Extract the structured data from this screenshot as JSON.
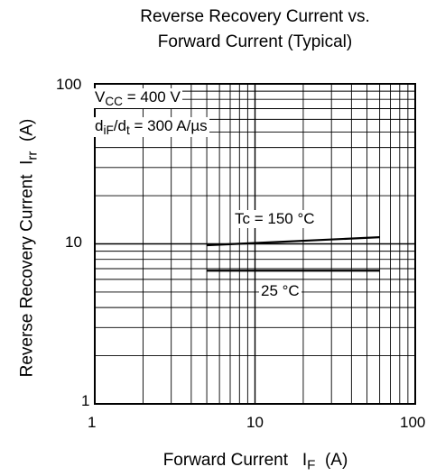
{
  "chart_data": {
    "type": "line",
    "title_line1": "Reverse Recovery Current vs.",
    "title_line2": "Forward Current  (Typical)",
    "ylabel": {
      "main": "Reverse Recovery Current",
      "symbol": "I",
      "subscript": "rr",
      "unit": "(A)"
    },
    "xlabel": {
      "main": "Forward  Current",
      "symbol": "I",
      "subscript": "F",
      "unit": "(A)"
    },
    "xscale": "log",
    "yscale": "log",
    "xlim": [
      1,
      100
    ],
    "ylim": [
      1,
      100
    ],
    "grid": true,
    "xticks": [
      "1",
      "10",
      "100"
    ],
    "yticks": [
      "1",
      "10",
      "100"
    ],
    "conditions": {
      "vcc": {
        "sym": "V",
        "sub": "CC",
        "rest": "= 400 V"
      },
      "didt": {
        "pre": "d",
        "sub1": "iF",
        "mid": "/d",
        "sub2": "t",
        "rest": "= 300 A/µs"
      }
    },
    "series": [
      {
        "name": "Tc = 150 °C",
        "x": [
          5,
          60
        ],
        "y": [
          9.8,
          11.0
        ]
      },
      {
        "name": "25 °C",
        "x": [
          5,
          60
        ],
        "y": [
          6.8,
          6.8
        ]
      }
    ]
  }
}
